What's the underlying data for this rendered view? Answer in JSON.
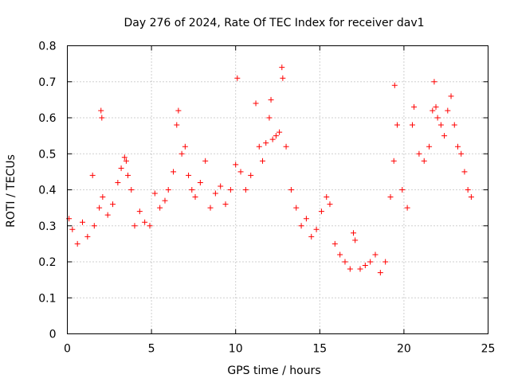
{
  "chart_data": {
    "type": "scatter",
    "title": "Day 276 of 2024, Rate Of TEC Index for receiver dav1",
    "xlabel": "GPS time / hours",
    "ylabel": "ROTI / TECUs",
    "xlim": [
      0,
      25
    ],
    "ylim": [
      0,
      0.8
    ],
    "x_ticks": [
      "0",
      "5",
      "10",
      "15",
      "20",
      "25"
    ],
    "y_ticks": [
      "0",
      "0.1",
      "0.2",
      "0.3",
      "0.4",
      "0.5",
      "0.6",
      "0.7",
      "0.8"
    ],
    "grid": true,
    "legend": "none",
    "marker": "+",
    "marker_color": "#ff0000",
    "series": [
      {
        "x": [
          0.1,
          0.3,
          0.6,
          0.9,
          1.2,
          1.5,
          1.6,
          1.9,
          2.0,
          2.05,
          2.1,
          2.4,
          2.7,
          3.0,
          3.2,
          3.4,
          3.5,
          3.6,
          3.8,
          4.0,
          4.3,
          4.6,
          4.9,
          5.2,
          5.5,
          5.8,
          6.0,
          6.3,
          6.5,
          6.6,
          6.8,
          7.0,
          7.2,
          7.4,
          7.6,
          7.9,
          8.2,
          8.5,
          8.8,
          9.1,
          9.4,
          9.7,
          10.0,
          10.1,
          10.3,
          10.6,
          10.9,
          11.2,
          11.4,
          11.6,
          11.8,
          12.0,
          12.1,
          12.2,
          12.4,
          12.6,
          12.75,
          12.8,
          13.0,
          13.3,
          13.6,
          13.9,
          14.2,
          14.5,
          14.8,
          15.1,
          15.4,
          15.6,
          15.9,
          16.2,
          16.5,
          16.8,
          17.0,
          17.1,
          17.4,
          17.7,
          18.0,
          18.3,
          18.6,
          18.9,
          19.2,
          19.4,
          19.45,
          19.6,
          19.9,
          20.2,
          20.5,
          20.6,
          20.9,
          21.2,
          21.5,
          21.7,
          21.8,
          21.9,
          22.0,
          22.2,
          22.4,
          22.6,
          22.8,
          23.0,
          23.2,
          23.4,
          23.6,
          23.8,
          24.0
        ],
        "y": [
          0.32,
          0.29,
          0.25,
          0.31,
          0.27,
          0.44,
          0.3,
          0.35,
          0.62,
          0.6,
          0.38,
          0.33,
          0.36,
          0.42,
          0.46,
          0.49,
          0.48,
          0.44,
          0.4,
          0.3,
          0.34,
          0.31,
          0.3,
          0.39,
          0.35,
          0.37,
          0.4,
          0.45,
          0.58,
          0.62,
          0.5,
          0.52,
          0.44,
          0.4,
          0.38,
          0.42,
          0.48,
          0.35,
          0.39,
          0.41,
          0.36,
          0.4,
          0.47,
          0.71,
          0.45,
          0.4,
          0.44,
          0.64,
          0.52,
          0.48,
          0.53,
          0.6,
          0.65,
          0.54,
          0.55,
          0.56,
          0.74,
          0.71,
          0.52,
          0.4,
          0.35,
          0.3,
          0.32,
          0.27,
          0.29,
          0.34,
          0.38,
          0.36,
          0.25,
          0.22,
          0.2,
          0.18,
          0.28,
          0.26,
          0.18,
          0.19,
          0.2,
          0.22,
          0.17,
          0.2,
          0.38,
          0.48,
          0.69,
          0.58,
          0.4,
          0.35,
          0.58,
          0.63,
          0.5,
          0.48,
          0.52,
          0.62,
          0.7,
          0.63,
          0.6,
          0.58,
          0.55,
          0.62,
          0.66,
          0.58,
          0.52,
          0.5,
          0.45,
          0.4,
          0.38
        ]
      }
    ]
  }
}
